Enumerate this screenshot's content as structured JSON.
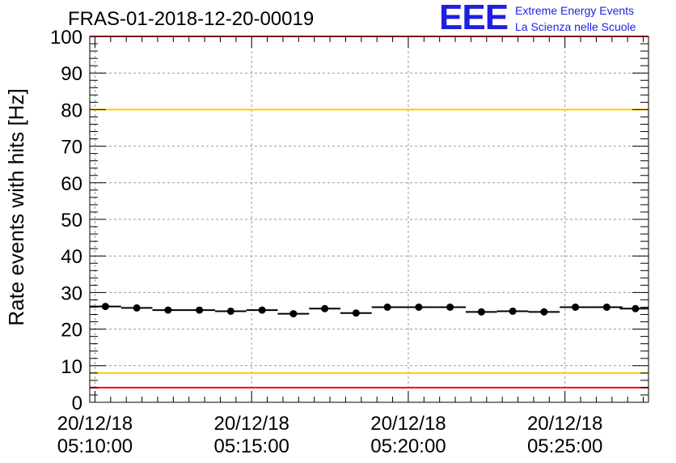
{
  "header": {
    "title": "FRAS-01-2018-12-20-00019",
    "logo_text": "EEE",
    "logo_line1": "Extreme Energy Events",
    "logo_line2": "La Scienza nelle Scuole",
    "logo_color": "#1f1fe0"
  },
  "chart_data": {
    "type": "scatter",
    "ylabel": "Rate events with hits [Hz]",
    "xlabel": "",
    "ylim": [
      0,
      100
    ],
    "y_ticks": [
      "0",
      "10",
      "20",
      "30",
      "40",
      "50",
      "60",
      "70",
      "80",
      "90",
      "100"
    ],
    "x_range": [
      "05:09:50",
      "05:27:40"
    ],
    "x_ticks": [
      {
        "time": "05:10:00",
        "date_label": "20/12/18",
        "time_label": "05:10:00"
      },
      {
        "time": "05:15:00",
        "date_label": "20/12/18",
        "time_label": "05:15:00"
      },
      {
        "time": "05:20:00",
        "date_label": "20/12/18",
        "time_label": "05:20:00"
      },
      {
        "time": "05:25:00",
        "date_label": "20/12/18",
        "time_label": "05:25:00"
      }
    ],
    "grid": true,
    "bin_width_seconds": 60,
    "series": [
      {
        "x": [
          "05:10:20",
          "05:11:20",
          "05:12:20",
          "05:13:20",
          "05:14:20",
          "05:15:20",
          "05:16:20",
          "05:17:20",
          "05:18:20",
          "05:19:20",
          "05:20:20",
          "05:21:20",
          "05:22:20",
          "05:23:20",
          "05:24:20",
          "05:25:20",
          "05:26:20",
          "05:27:15"
        ],
        "y": [
          26.2,
          25.8,
          25.2,
          25.2,
          24.9,
          25.2,
          24.2,
          25.6,
          24.4,
          26.0,
          26.0,
          26.0,
          24.7,
          24.9,
          24.7,
          26.0,
          26.0,
          25.6
        ]
      }
    ],
    "reference_lines": [
      {
        "y": 100,
        "color": "#ff0000"
      },
      {
        "y": 80,
        "color": "#ffcc00"
      },
      {
        "y": 8,
        "color": "#ffcc00"
      },
      {
        "y": 4,
        "color": "#ff0000"
      }
    ]
  }
}
